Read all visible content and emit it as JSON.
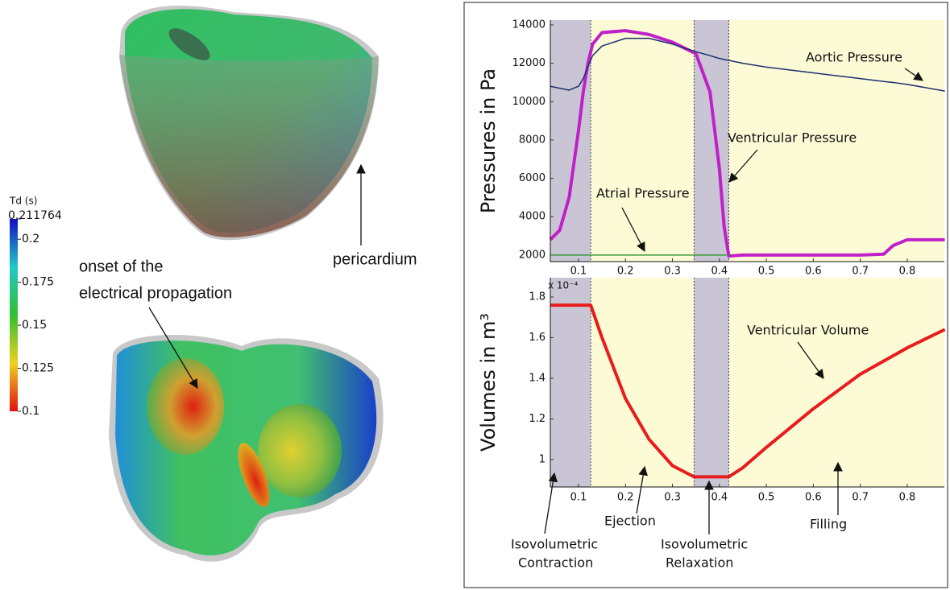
{
  "chart_data": [
    {
      "type": "line",
      "y_label": "Pressures in Pa",
      "x": [
        0.04,
        0.06,
        0.08,
        0.1,
        0.11,
        0.12,
        0.13,
        0.15,
        0.2,
        0.25,
        0.3,
        0.35,
        0.38,
        0.4,
        0.41,
        0.42,
        0.45,
        0.5,
        0.6,
        0.7,
        0.75,
        0.77,
        0.8,
        0.88
      ],
      "series": [
        {
          "name": "Ventricular Pressure",
          "color": "#c020c8",
          "width": 4,
          "values": [
            2800,
            3300,
            5000,
            8500,
            10500,
            12000,
            13000,
            13600,
            13700,
            13500,
            13100,
            12500,
            10500,
            6500,
            3500,
            1950,
            2000,
            2000,
            2000,
            2000,
            2050,
            2500,
            2800,
            2800
          ]
        },
        {
          "name": "Aortic Pressure",
          "color": "#1c2f6e",
          "width": 1.5,
          "values": [
            10800,
            10700,
            10600,
            10800,
            11200,
            11800,
            12400,
            12900,
            13300,
            13300,
            13000,
            12600,
            12400,
            12250,
            12200,
            12150,
            12000,
            11800,
            11500,
            11200,
            11050,
            11000,
            10900,
            10550
          ]
        },
        {
          "name": "Atrial Pressure",
          "color": "#3a9a3a",
          "width": 1.5,
          "values": [
            2000,
            2000,
            2000,
            2000,
            2000,
            2000,
            2000,
            2000,
            2000,
            2000,
            2000,
            2000,
            2000,
            2000,
            2000,
            2000,
            null,
            null,
            null,
            null,
            null,
            null,
            null,
            null
          ]
        }
      ],
      "xlim": [
        0.04,
        0.879
      ],
      "ylim": [
        1660,
        14250
      ],
      "xticks": [
        0.1,
        0.2,
        0.3,
        0.4,
        0.5,
        0.6,
        0.7,
        0.8
      ],
      "yticks": [
        2000,
        4000,
        6000,
        8000,
        10000,
        12000,
        14000
      ],
      "background_color": "#fdfbd6",
      "shade_color": "#c9c5d5",
      "shaded_regions": [
        {
          "from": 0.04,
          "to": 0.126
        },
        {
          "from": 0.346,
          "to": 0.42
        }
      ],
      "annotations": [
        {
          "text": "Aortic Pressure"
        },
        {
          "text": "Ventricular Pressure"
        },
        {
          "text": "Atrial Pressure"
        }
      ]
    },
    {
      "type": "line",
      "y_label": "Volumes in m³",
      "y_multiplier": "x 10⁻⁴",
      "x": [
        0.04,
        0.126,
        0.15,
        0.2,
        0.25,
        0.3,
        0.346,
        0.42,
        0.45,
        0.5,
        0.6,
        0.7,
        0.8,
        0.88
      ],
      "series": [
        {
          "name": "Ventricular Volume",
          "color": "#e81c1c",
          "width": 4,
          "values": [
            1.76,
            1.76,
            1.6,
            1.3,
            1.1,
            0.97,
            0.915,
            0.915,
            0.96,
            1.06,
            1.25,
            1.42,
            1.55,
            1.64
          ]
        }
      ],
      "xlim": [
        0.04,
        0.879
      ],
      "ylim": [
        0.865,
        1.895
      ],
      "xticks": [
        0.1,
        0.2,
        0.3,
        0.4,
        0.5,
        0.6,
        0.7,
        0.8
      ],
      "yticks": [
        1,
        1.2,
        1.4,
        1.6,
        1.8
      ],
      "background_color": "#fdfbd6",
      "shade_color": "#c9c5d5",
      "shaded_regions": [
        {
          "from": 0.04,
          "to": 0.126
        },
        {
          "from": 0.346,
          "to": 0.42
        }
      ],
      "annotations": [
        {
          "lines": [
            "Ventricular Volume"
          ]
        },
        {
          "lines": [
            "Ejection"
          ]
        },
        {
          "lines": [
            "Isovolumetric",
            "Contraction"
          ]
        },
        {
          "lines": [
            "Isovolumetric",
            "Relaxation"
          ]
        },
        {
          "lines": [
            "Filling"
          ]
        }
      ]
    }
  ],
  "colorbar": {
    "title": "Td (s)",
    "lim": [
      0.1,
      0.211764
    ],
    "ticks": [
      0.1,
      0.125,
      0.15,
      0.175,
      0.2,
      0.211764
    ],
    "colors": [
      "#e01010",
      "#f0d020",
      "#30c030",
      "#20c8c8",
      "#1010c0"
    ]
  },
  "figure_annotations": {
    "pericardium": "pericardium",
    "onset": [
      "onset of the",
      "electrical propagation"
    ]
  }
}
